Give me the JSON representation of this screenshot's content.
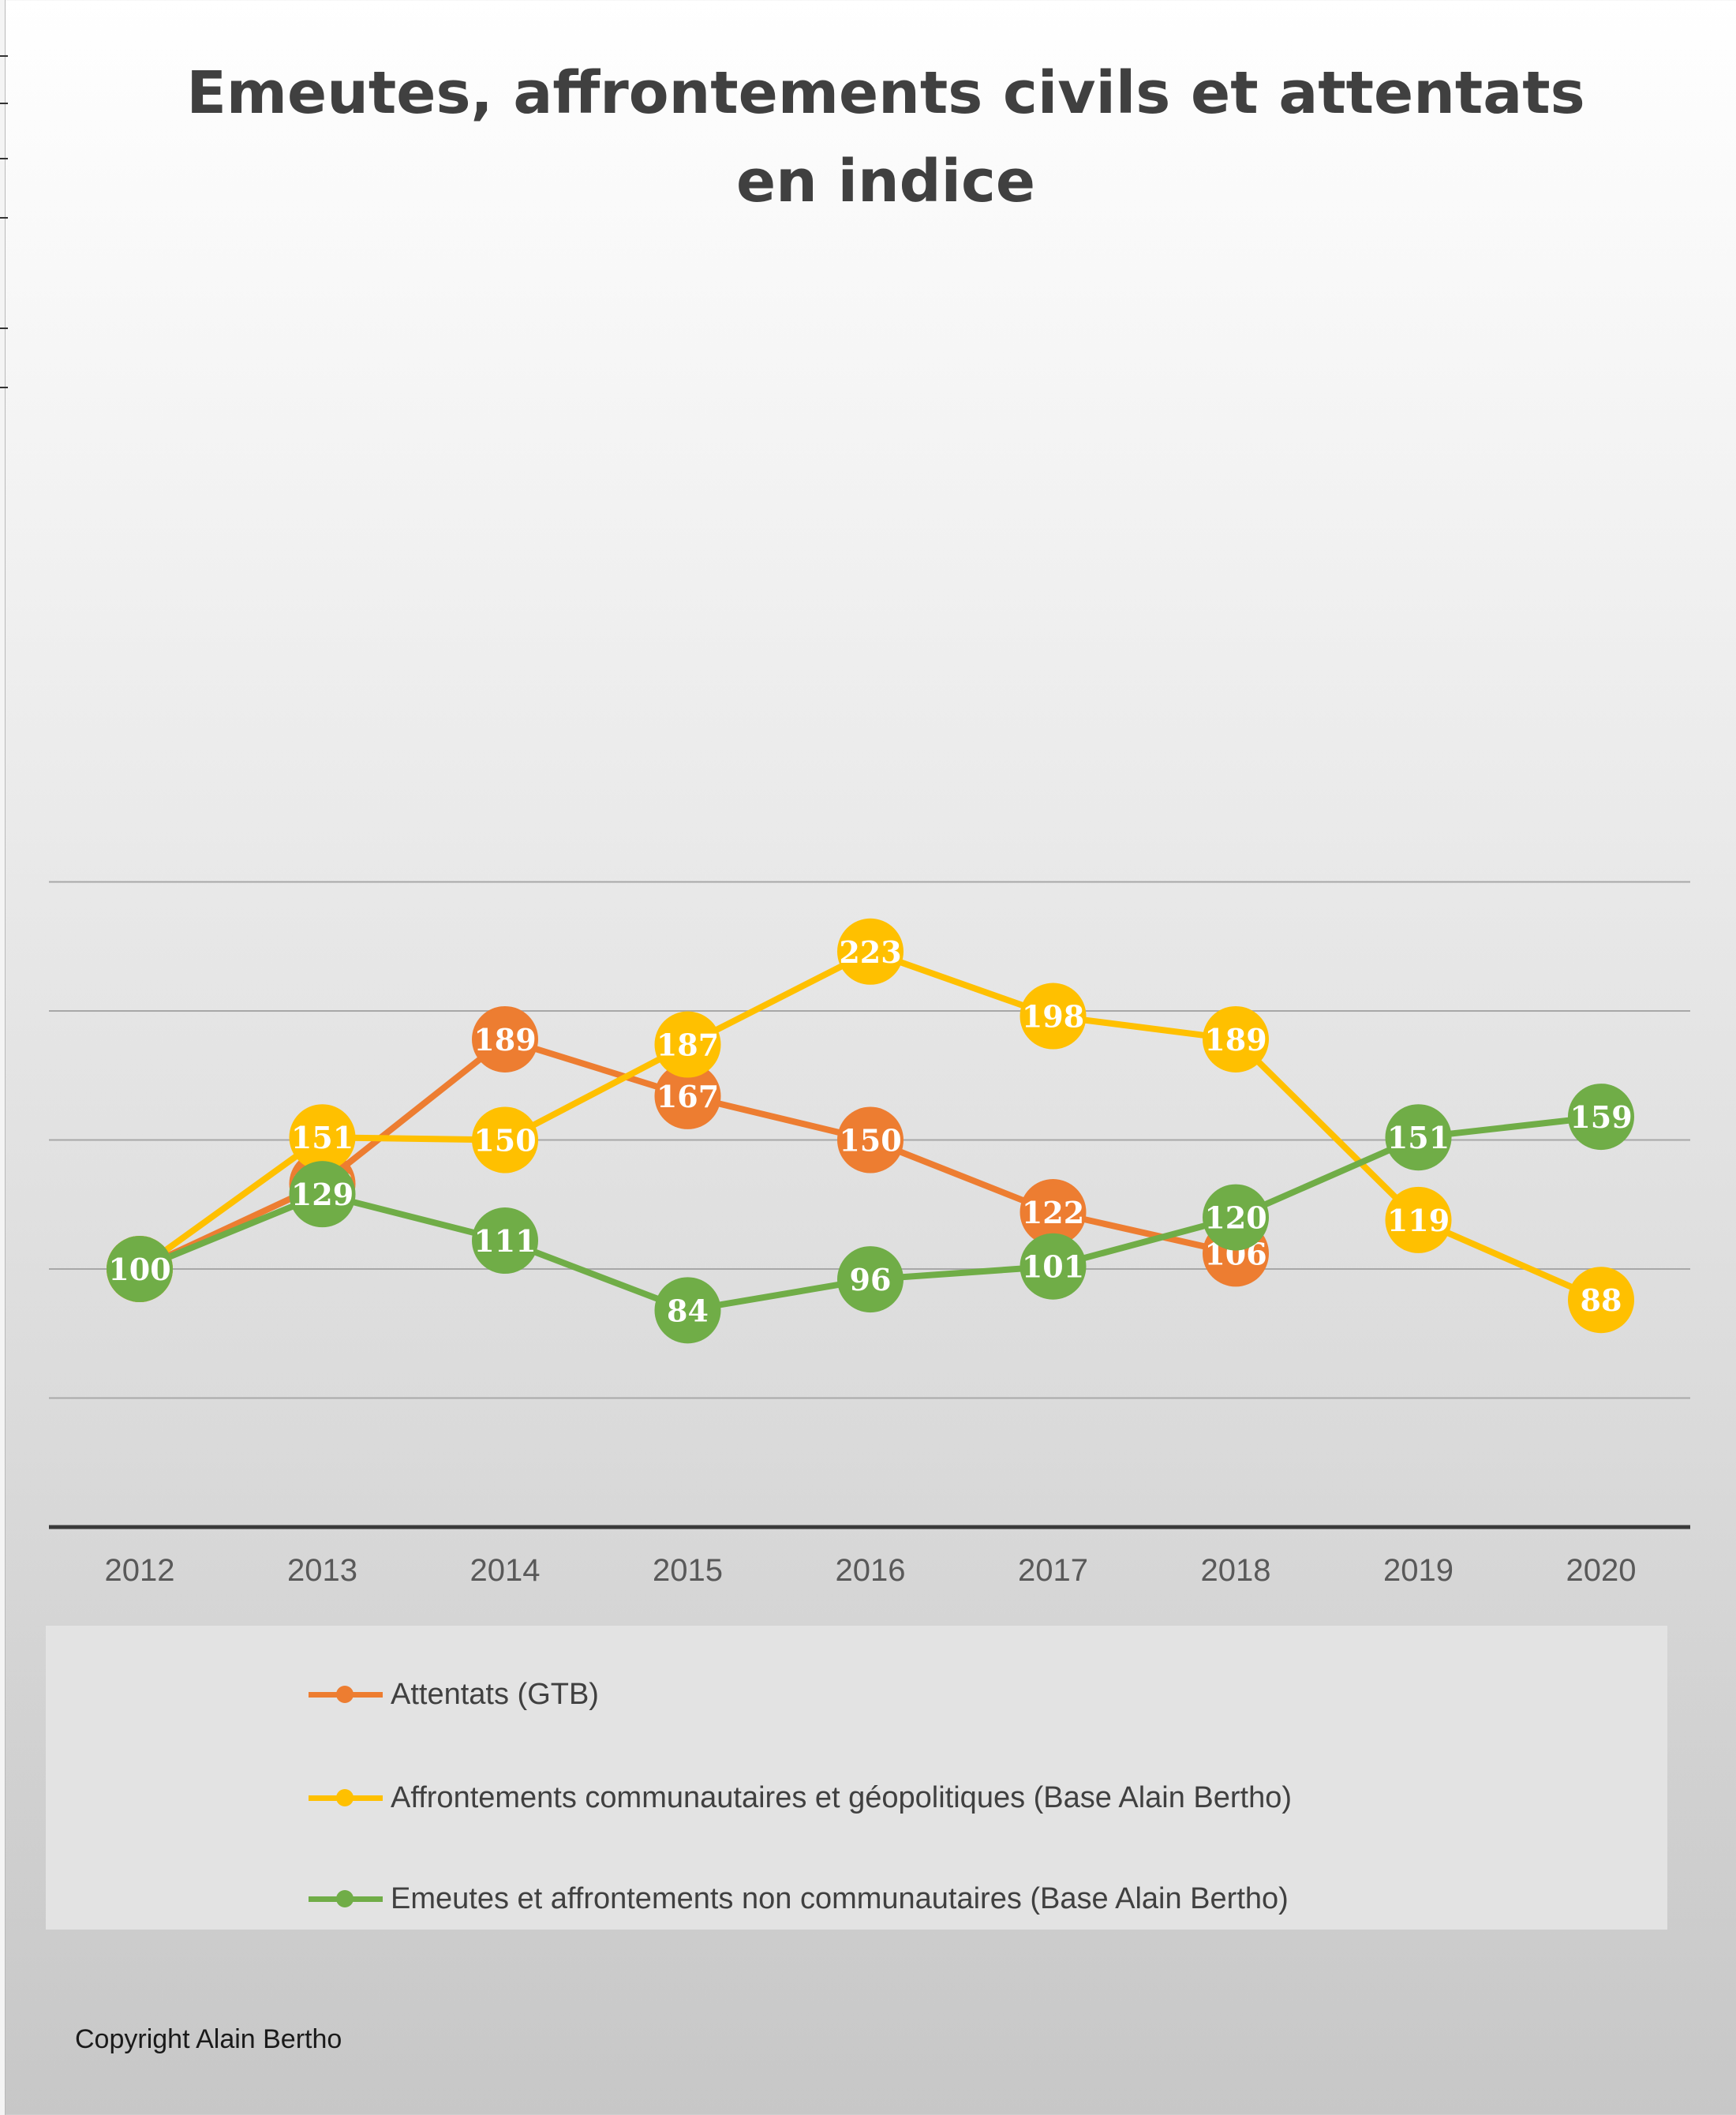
{
  "chart_data": {
    "type": "line",
    "title_lines": [
      "Emeutes, affrontements civils et attentats",
      "en indice"
    ],
    "categories": [
      "2012",
      "2013",
      "2014",
      "2015",
      "2016",
      "2017",
      "2018",
      "2019",
      "2020"
    ],
    "xlabel": "",
    "ylabel": "",
    "ylim": [
      0,
      250
    ],
    "y_gridlines": [
      50,
      100,
      150,
      200,
      250
    ],
    "series": [
      {
        "name": "Attentats (GTB)",
        "color": "#ED7D31",
        "values": [
          100,
          133,
          189,
          167,
          150,
          122,
          106,
          null,
          null
        ]
      },
      {
        "name": "Affrontements communautaires et géopolitiques (Base Alain Bertho)",
        "color": "#FFC000",
        "values": [
          100,
          151,
          150,
          187,
          223,
          198,
          189,
          119,
          88
        ]
      },
      {
        "name": "Emeutes et affrontements non communautaires (Base Alain Bertho)",
        "color": "#70AD47",
        "values": [
          100,
          129,
          111,
          84,
          96,
          101,
          120,
          151,
          159
        ]
      }
    ],
    "legend_position": "bottom",
    "footer": "Copyright Alain Bertho"
  }
}
